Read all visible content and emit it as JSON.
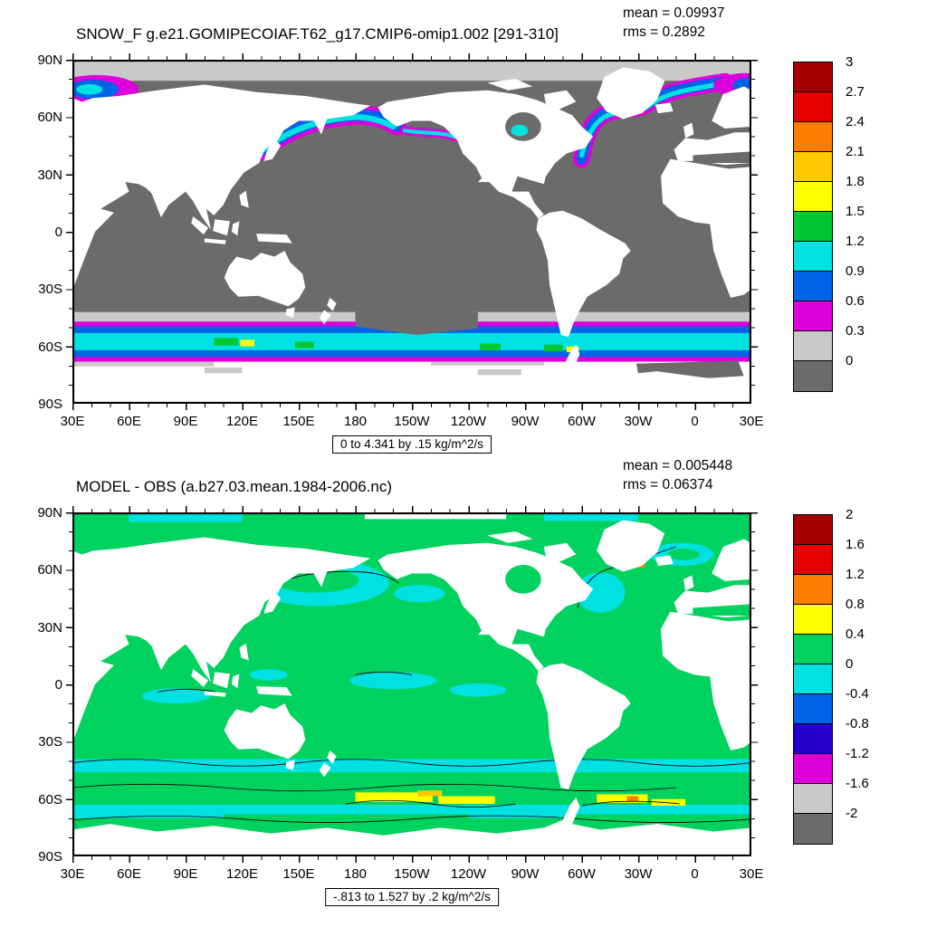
{
  "palette": {
    "land": "#ffffff",
    "zero_gray": "#6b6b6b",
    "low_gray": "#c9c9c9",
    "magenta": "#dd00dd",
    "blue": "#0064e6",
    "cyan": "#00e1e1",
    "green_top": "#00c832",
    "green_diff": "#00d25f",
    "yellow": "#ffff00",
    "orange_yellow": "#ffc800",
    "orange": "#ff7d00",
    "red": "#e60000",
    "dark_red": "#a50000"
  },
  "panels": [
    {
      "title": "SNOW_F g.e21.GOMIPECOIAF.T62_g17.CMIP6-omip1.002 [291-310]",
      "mean": "mean = 0.09937",
      "rms": "rms = 0.2892",
      "caption": "0 to 4.341 by .15 kg/m^2/s",
      "lat_labels": [
        "90N",
        "60N",
        "30N",
        "0",
        "30S",
        "60S",
        "90S"
      ],
      "lon_labels": [
        "30E",
        "60E",
        "90E",
        "120E",
        "150E",
        "180",
        "150W",
        "120W",
        "90W",
        "60W",
        "30W",
        "0",
        "30E"
      ],
      "colorbar": {
        "labels": [
          "3",
          "2.7",
          "2.4",
          "2.1",
          "1.8",
          "1.5",
          "1.2",
          "0.9",
          "0.6",
          "0.3",
          "0"
        ],
        "colors": [
          "#a50000",
          "#e60000",
          "#ff7d00",
          "#ffc800",
          "#ffff00",
          "#00c832",
          "#00e1e1",
          "#0064e6",
          "#dd00dd",
          "#c9c9c9",
          "#6b6b6b"
        ]
      }
    },
    {
      "title": "MODEL - OBS (a.b27.03.mean.1984-2006.nc)",
      "mean": "mean = 0.005448",
      "rms": "rms = 0.06374",
      "caption": "-.813 to 1.527 by .2 kg/m^2/s",
      "lat_labels": [
        "90N",
        "60N",
        "30N",
        "0",
        "30S",
        "60S",
        "90S"
      ],
      "lon_labels": [
        "30E",
        "60E",
        "90E",
        "120E",
        "150E",
        "180",
        "150W",
        "120W",
        "90W",
        "60W",
        "30W",
        "0",
        "30E"
      ],
      "colorbar": {
        "labels": [
          "2",
          "1.6",
          "1.2",
          "0.8",
          "0.4",
          "0",
          "-0.4",
          "-0.8",
          "-1.2",
          "-1.6",
          "-2"
        ],
        "colors": [
          "#a50000",
          "#e60000",
          "#ff7d00",
          "#ffff00",
          "#00d25f",
          "#00e1e1",
          "#0064e6",
          "#2800cd",
          "#dd00dd",
          "#c9c9c9",
          "#6b6b6b"
        ]
      }
    }
  ],
  "chart_data": [
    {
      "type": "heatmap",
      "subtype": "filled-contour world map, cylindrical equidistant, Pacific-centered (180)",
      "title": "SNOW_F g.e21.GOMIPECOIAF.T62_g17.CMIP6-omip1.002 [291-310]",
      "variable": "SNOW_F (snow flux)",
      "units": "kg/m^2/s",
      "mean": 0.09937,
      "rms": 0.2892,
      "data_range": {
        "min": 0,
        "max": 4.341,
        "contour_interval": 0.15
      },
      "colorbar_levels": [
        0,
        0.3,
        0.6,
        0.9,
        1.2,
        1.5,
        1.8,
        2.1,
        2.4,
        2.7,
        3
      ],
      "lon_axis_ticks": [
        "30E",
        "60E",
        "90E",
        "120E",
        "150E",
        "180",
        "150W",
        "120W",
        "90W",
        "60W",
        "30W",
        "0",
        "30E"
      ],
      "lat_axis_ticks": [
        "90N",
        "60N",
        "30N",
        "0",
        "30S",
        "60S",
        "90S"
      ],
      "legend_position": "right",
      "features": [
        {
          "region": "tropical and subtropical oceans",
          "value": "~0 (dark gray bin)"
        },
        {
          "region": "Arctic Ocean",
          "value": "0 to 0.3 (light gray bin)"
        },
        {
          "region": "Barents/Nordic Seas near 30E-60E, ~75N",
          "value": "0.3 to 1.5 (magenta-blue-cyan patch)"
        },
        {
          "region": "NW Pacific: Sea of Okhotsk, Kamchatka, Bering Sea arc",
          "value": "0.3 to 1.5"
        },
        {
          "region": "Gulf of Alaska coastal strip",
          "value": "0.3 to 1.2"
        },
        {
          "region": "Labrador Sea and seas around Greenland toward Iceland/Norwegian Sea",
          "value": "0.3 to 1.5"
        },
        {
          "region": "circumpolar Southern Ocean band ~48S-65S",
          "value": "0.3 to 2.1 with green/yellow maxima"
        },
        {
          "region": "continents and Antarctica",
          "value": "masked white"
        }
      ]
    },
    {
      "type": "heatmap",
      "subtype": "filled-contour difference map (model minus observations), Pacific-centered",
      "title": "MODEL - OBS (a.b27.03.mean.1984-2006.nc)",
      "variable": "SNOW_F difference",
      "units": "kg/m^2/s",
      "mean": 0.005448,
      "rms": 0.06374,
      "data_range": {
        "min": -0.813,
        "max": 1.527,
        "contour_interval": 0.2
      },
      "colorbar_levels": [
        -2,
        -1.6,
        -1.2,
        -0.8,
        -0.4,
        0,
        0.4,
        0.8,
        1.2,
        1.6,
        2
      ],
      "lon_axis_ticks": [
        "30E",
        "60E",
        "90E",
        "120E",
        "150E",
        "180",
        "150W",
        "120W",
        "90W",
        "60W",
        "30W",
        "0",
        "30E"
      ],
      "lat_axis_ticks": [
        "90N",
        "60N",
        "30N",
        "0",
        "30S",
        "60S",
        "90S"
      ],
      "legend_position": "right",
      "features": [
        {
          "region": "most of the global ocean",
          "value": "0 to 0.4 (green)"
        },
        {
          "region": "N Pacific ring around Kamchatka/Bering, N Atlantic patches, scattered tropical patches, ~45S-52S band",
          "value": "-0.4 to 0 (cyan)"
        },
        {
          "region": "Southern Ocean ~55S-65S streaks (Pacific sector and SW Atlantic/Scotia Sea)",
          "value": "0.4 to 1.2 (yellow/orange)"
        },
        {
          "region": "small spots near SE Greenland and Davis Strait",
          "value": "0.8 to 1.6 (orange/red)"
        },
        {
          "region": "zero-difference contour",
          "value": "thin black squiggly lines"
        },
        {
          "region": "continents and Antarctica",
          "value": "masked white"
        }
      ]
    }
  ]
}
